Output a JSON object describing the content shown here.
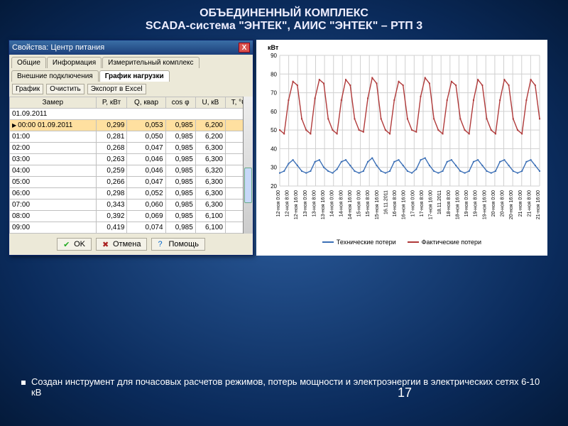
{
  "slide": {
    "title_line1": "ОБЪЕДИНЕННЫЙ КОМПЛЕКС",
    "title_line2": "SCADA-система \"ЭНТЕК\", АИИС \"ЭНТЕК\" – РТП 3",
    "bullet_text": "Создан инструмент для почасовых расчетов режимов, потерь мощности и электроэнергии в электрических сетях 6-10 кВ",
    "page_number": "17"
  },
  "window": {
    "title": "Свойства: Центр питания",
    "tabs_row1": [
      "Общие",
      "Информация",
      "Измерительный комплекс"
    ],
    "tabs_row2": [
      "Внешние подключения",
      "График нагрузки"
    ],
    "active_tab": "График нагрузки",
    "toolbar": [
      "График",
      "Очистить",
      "Экспорт в Excel"
    ],
    "columns": [
      "Замер",
      "P, кВт",
      "Q, квар",
      "cos φ",
      "U, кВ",
      "T, °C"
    ],
    "date_header": "01.09.2011",
    "rows": [
      {
        "t": "00:00 01.09.2011",
        "p": "0,299",
        "q": "0,053",
        "c": "0,985",
        "u": "6,200",
        "temp": "",
        "sel": true
      },
      {
        "t": "01:00",
        "p": "0,281",
        "q": "0,050",
        "c": "0,985",
        "u": "6,200",
        "temp": ""
      },
      {
        "t": "02:00",
        "p": "0,268",
        "q": "0,047",
        "c": "0,985",
        "u": "6,300",
        "temp": ""
      },
      {
        "t": "03:00",
        "p": "0,263",
        "q": "0,046",
        "c": "0,985",
        "u": "6,300",
        "temp": ""
      },
      {
        "t": "04:00",
        "p": "0,259",
        "q": "0,046",
        "c": "0,985",
        "u": "6,320",
        "temp": ""
      },
      {
        "t": "05:00",
        "p": "0,266",
        "q": "0,047",
        "c": "0,985",
        "u": "6,300",
        "temp": ""
      },
      {
        "t": "06:00",
        "p": "0,298",
        "q": "0,052",
        "c": "0,985",
        "u": "6,300",
        "temp": ""
      },
      {
        "t": "07:00",
        "p": "0,343",
        "q": "0,060",
        "c": "0,985",
        "u": "6,300",
        "temp": ""
      },
      {
        "t": "08:00",
        "p": "0,392",
        "q": "0,069",
        "c": "0,985",
        "u": "6,100",
        "temp": ""
      },
      {
        "t": "09:00",
        "p": "0,419",
        "q": "0,074",
        "c": "0,985",
        "u": "6,100",
        "temp": ""
      }
    ],
    "buttons": {
      "ok": "OK",
      "cancel": "Отмена",
      "help": "Помощь"
    }
  },
  "chart": {
    "y_label": "кВт",
    "ylim": [
      20,
      90
    ],
    "ytick_step": 10,
    "grid_color": "#d0d0d0",
    "series": [
      {
        "name": "Технические потери",
        "color": "#3b6fb6",
        "values": [
          27,
          28,
          32,
          34,
          31,
          28,
          27,
          28,
          33,
          34,
          30,
          28,
          27,
          29,
          33,
          34,
          31,
          28,
          27,
          28,
          33,
          35,
          31,
          28,
          27,
          28,
          33,
          34,
          31,
          28,
          27,
          29,
          34,
          35,
          31,
          28,
          27,
          28,
          33,
          34,
          31,
          28,
          27,
          28,
          33,
          34,
          31,
          28,
          27,
          28,
          33,
          34,
          31,
          28,
          27,
          28,
          33,
          34,
          31,
          28
        ]
      },
      {
        "name": "Фактические потери",
        "color": "#b03a3a",
        "values": [
          50,
          48,
          66,
          76,
          74,
          56,
          50,
          48,
          67,
          77,
          75,
          56,
          50,
          48,
          66,
          77,
          74,
          56,
          50,
          49,
          67,
          78,
          75,
          56,
          50,
          48,
          66,
          76,
          74,
          56,
          50,
          49,
          68,
          78,
          75,
          56,
          50,
          48,
          66,
          76,
          74,
          56,
          50,
          48,
          66,
          77,
          74,
          56,
          50,
          48,
          66,
          77,
          74,
          56,
          50,
          48,
          66,
          77,
          74,
          56
        ]
      }
    ],
    "x_labels": [
      "12-ноя 0:00",
      "12-ноя 8:00",
      "12-ноя 16:00",
      "13-ноя 0:00",
      "13-ноя 8:00",
      "13-ноя 16:00",
      "14-ноя 0:00",
      "14-ноя 8:00",
      "14-ноя 16:00",
      "15-ноя 0:00",
      "15-ноя 8:00",
      "15-ноя 16:00",
      "16.11.2011",
      "16-ноя 8:00",
      "16-ноя 16:00",
      "17-ноя 0:00",
      "17-ноя 8:00",
      "17-ноя 16:00",
      "18.11.2011",
      "18-ноя 8:00",
      "18-ноя 16:00",
      "19-ноя 0:00",
      "19-ноя 8:00",
      "19-ноя 16:00",
      "20-ноя 0:00",
      "20-ноя 8:00",
      "20-ноя 16:00",
      "21-ноя 0:00",
      "21-ноя 8:00",
      "21-ноя 16:00"
    ],
    "background": "#ffffff",
    "legend": {
      "tech": "Технические потери",
      "fact": "Фактические потери"
    }
  }
}
